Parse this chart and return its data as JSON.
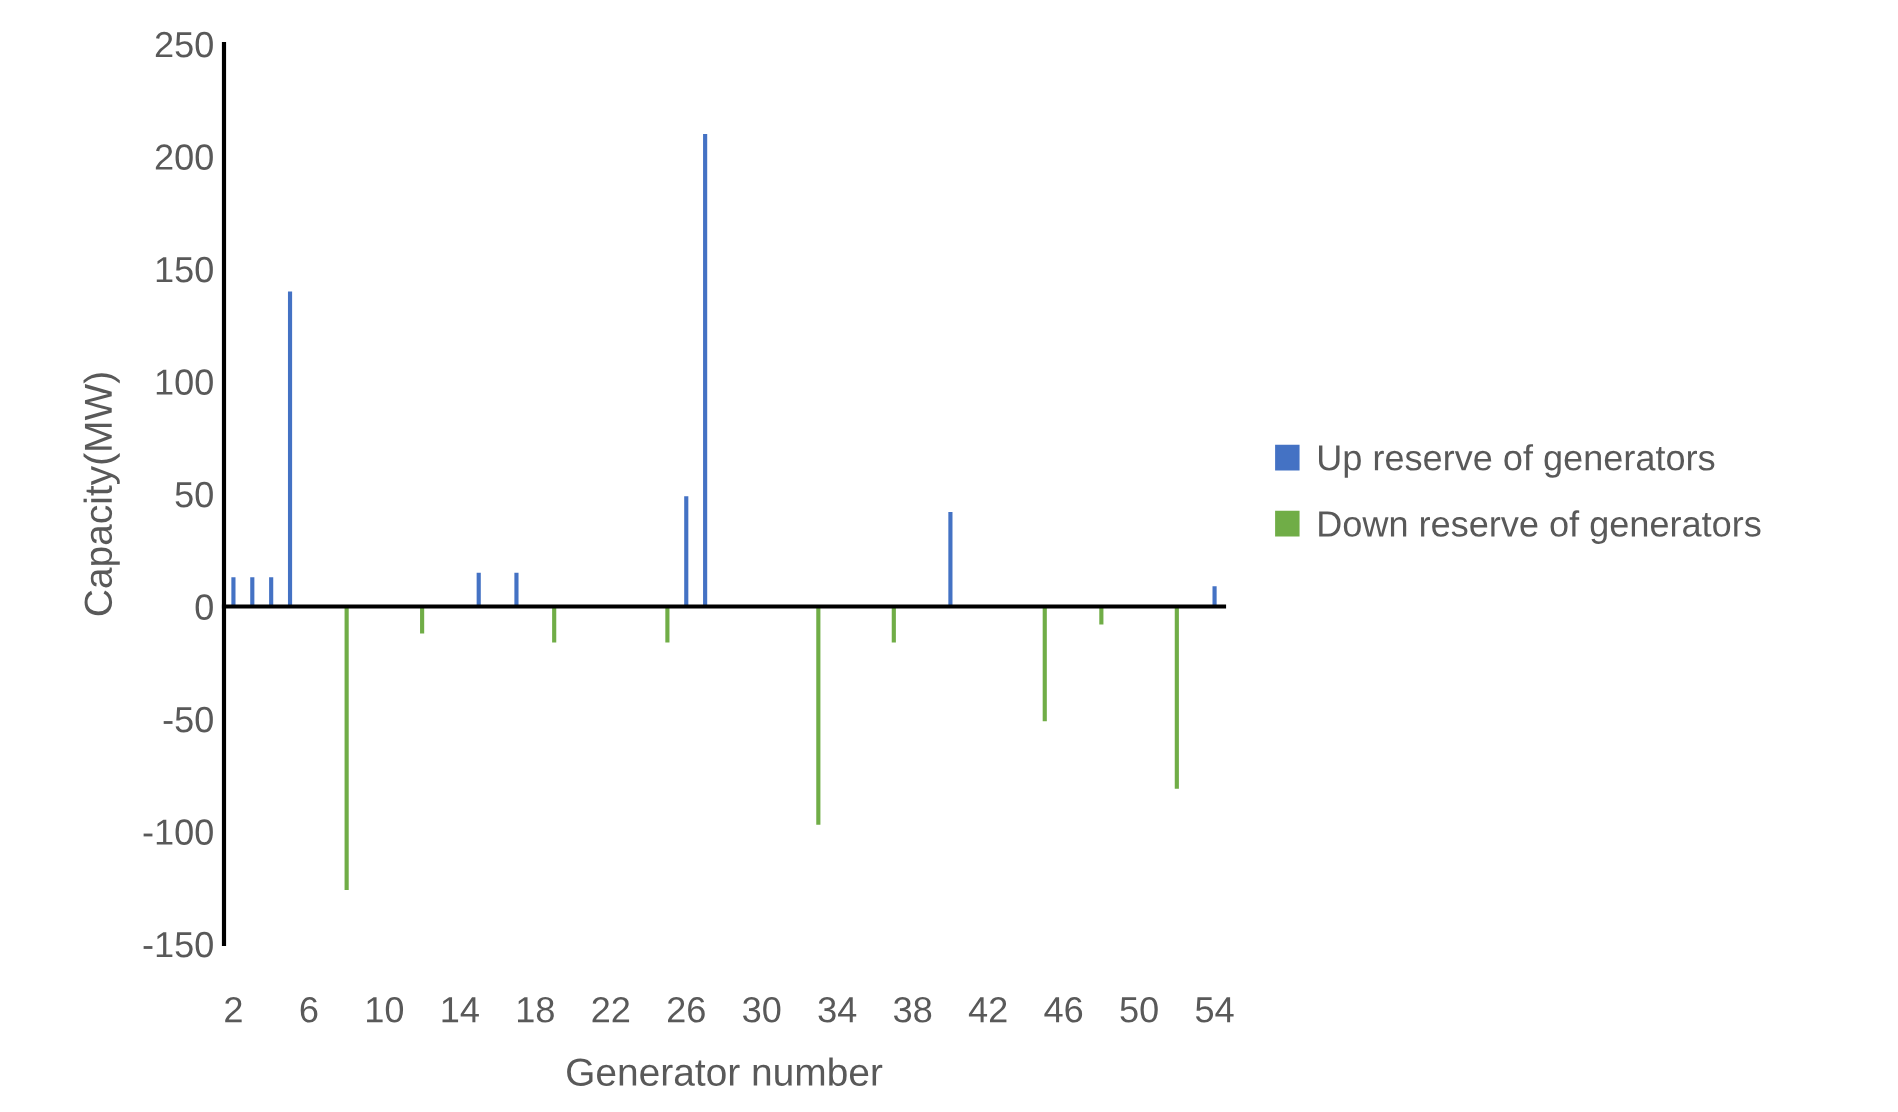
{
  "chart_data": {
    "type": "bar",
    "xlabel": "Generator number",
    "ylabel": "Capacity(MW)",
    "categories": [
      "2",
      null,
      null,
      null,
      "6",
      null,
      null,
      null,
      "10",
      null,
      null,
      null,
      "14",
      null,
      null,
      null,
      "18",
      null,
      null,
      null,
      "22",
      null,
      null,
      null,
      "26",
      null,
      null,
      null,
      "30",
      null,
      null,
      null,
      "34",
      null,
      null,
      null,
      "38",
      null,
      null,
      null,
      "42",
      null,
      null,
      null,
      "46",
      null,
      null,
      null,
      "50",
      null,
      null,
      null,
      "54"
    ],
    "series": [
      {
        "name": "Up reserve of generators",
        "color": "#4472c4",
        "values": [
          13,
          13,
          13,
          140,
          null,
          null,
          null,
          null,
          null,
          null,
          null,
          null,
          null,
          15,
          null,
          15,
          null,
          null,
          null,
          null,
          null,
          null,
          null,
          null,
          49,
          210,
          null,
          null,
          null,
          null,
          null,
          null,
          null,
          null,
          null,
          null,
          null,
          null,
          42,
          null,
          null,
          null,
          null,
          null,
          null,
          null,
          null,
          null,
          null,
          null,
          null,
          null,
          9
        ]
      },
      {
        "name": "Down reserve of generators",
        "color": "#70ad47",
        "values": [
          null,
          null,
          null,
          null,
          null,
          null,
          -126,
          null,
          null,
          null,
          -12,
          null,
          null,
          null,
          null,
          null,
          null,
          -16,
          null,
          null,
          null,
          null,
          null,
          -16,
          null,
          null,
          null,
          null,
          null,
          null,
          null,
          -97,
          null,
          null,
          null,
          -16,
          null,
          null,
          null,
          null,
          null,
          null,
          null,
          -51,
          null,
          null,
          -8,
          null,
          null,
          null,
          -81,
          null,
          null
        ]
      }
    ],
    "ylim": [
      -150,
      250
    ],
    "yticks": [
      -150,
      -100,
      -50,
      0,
      50,
      100,
      150,
      200,
      250
    ],
    "legend": "right"
  }
}
